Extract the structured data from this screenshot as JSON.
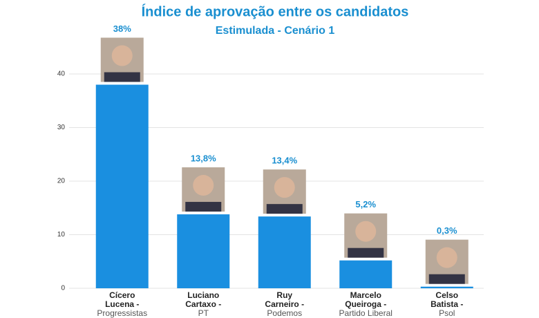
{
  "chart_data": {
    "type": "bar",
    "title": "Índice de aprovação entre os candidatos",
    "subtitle": "Estimulada - Cenário 1",
    "categories": [
      "Cícero Lucena -",
      "Luciano Cartaxo -",
      "Ruy Carneiro -",
      "Marcelo Queiroga -",
      "Celso Batista -"
    ],
    "parties": [
      "Progressistas",
      "PT",
      "Podemos",
      "Partido Liberal",
      "Psol"
    ],
    "values": [
      38,
      13.8,
      13.4,
      5.2,
      0.3
    ],
    "value_labels": [
      "38%",
      "13,8%",
      "13,4%",
      "5,2%",
      "0,3%"
    ],
    "color": "#1a8fe0",
    "ylim": [
      0,
      40
    ],
    "yticks": [
      0,
      10,
      20,
      30,
      40
    ],
    "grid": true
  }
}
